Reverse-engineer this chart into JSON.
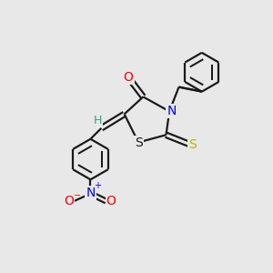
{
  "bg_color": "#e8e8e8",
  "bond_color": "#1a1a1a",
  "bond_width": 1.6,
  "atom_colors": {
    "O": "#ff0000",
    "N": "#0000ff",
    "S_yellow": "#b8b800",
    "S_black": "#1a1a1a",
    "H": "#4a9a7a",
    "C": "#1a1a1a"
  },
  "font_size_atom": 10,
  "font_size_small": 8,
  "figsize": [
    3.0,
    3.0
  ],
  "dpi": 100
}
